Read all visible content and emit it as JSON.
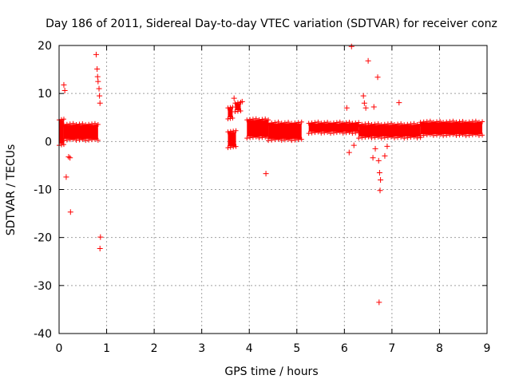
{
  "chart_data": {
    "type": "scatter",
    "title": "Day 186 of 2011, Sidereal Day-to-day VTEC variation (SDTVAR) for receiver conz",
    "xlabel": "GPS time / hours",
    "ylabel": "SDTVAR / TECUs",
    "xlim": [
      0,
      9
    ],
    "ylim": [
      -40,
      20
    ],
    "xticks": [
      0,
      1,
      2,
      3,
      4,
      5,
      6,
      7,
      8,
      9
    ],
    "yticks": [
      -40,
      -30,
      -20,
      -10,
      0,
      10,
      20
    ],
    "grid": true,
    "series": [
      {
        "name": "SDTVAR",
        "color": "#ff0000",
        "marker": "+",
        "dense_bands": [
          {
            "x_start": 0.0,
            "x_end": 0.1,
            "y_low": -0.5,
            "y_high": 4.5
          },
          {
            "x_start": 0.1,
            "x_end": 0.82,
            "y_low": 0.5,
            "y_high": 3.5
          },
          {
            "x_start": 3.55,
            "x_end": 3.72,
            "y_low": -1.0,
            "y_high": 2.0
          },
          {
            "x_start": 3.55,
            "x_end": 3.65,
            "y_low": 5.0,
            "y_high": 7.0
          },
          {
            "x_start": 3.7,
            "x_end": 3.82,
            "y_low": 6.5,
            "y_high": 8.0
          },
          {
            "x_start": 3.95,
            "x_end": 4.4,
            "y_low": 1.0,
            "y_high": 4.5
          },
          {
            "x_start": 4.4,
            "x_end": 5.1,
            "y_low": 0.5,
            "y_high": 3.8
          },
          {
            "x_start": 5.25,
            "x_end": 6.3,
            "y_low": 2.0,
            "y_high": 3.8
          },
          {
            "x_start": 6.3,
            "x_end": 7.6,
            "y_low": 1.0,
            "y_high": 3.5
          },
          {
            "x_start": 7.6,
            "x_end": 8.9,
            "y_low": 1.5,
            "y_high": 4.0
          }
        ],
        "points": [
          [
            0.1,
            11.8
          ],
          [
            0.12,
            10.6
          ],
          [
            0.15,
            -7.4
          ],
          [
            0.2,
            -3.2
          ],
          [
            0.23,
            -3.4
          ],
          [
            0.24,
            -14.7
          ],
          [
            0.78,
            18.1
          ],
          [
            0.8,
            15.1
          ],
          [
            0.81,
            13.5
          ],
          [
            0.82,
            12.5
          ],
          [
            0.84,
            11.0
          ],
          [
            0.85,
            9.5
          ],
          [
            0.86,
            8.0
          ],
          [
            0.87,
            -19.9
          ],
          [
            0.86,
            -22.3
          ],
          [
            3.68,
            9.0
          ],
          [
            3.85,
            8.3
          ],
          [
            4.35,
            -6.7
          ],
          [
            6.15,
            19.8
          ],
          [
            6.05,
            7.0
          ],
          [
            6.1,
            -2.3
          ],
          [
            6.2,
            -0.8
          ],
          [
            6.4,
            9.5
          ],
          [
            6.42,
            8.0
          ],
          [
            6.45,
            7.0
          ],
          [
            6.5,
            16.8
          ],
          [
            6.62,
            7.2
          ],
          [
            6.6,
            -3.4
          ],
          [
            6.65,
            -1.5
          ],
          [
            6.7,
            13.4
          ],
          [
            6.72,
            -4.0
          ],
          [
            6.74,
            -6.5
          ],
          [
            6.75,
            -10.2
          ],
          [
            6.76,
            -8.0
          ],
          [
            6.73,
            -33.5
          ],
          [
            6.85,
            -3.0
          ],
          [
            6.9,
            -1.0
          ],
          [
            7.15,
            8.1
          ]
        ]
      }
    ]
  }
}
